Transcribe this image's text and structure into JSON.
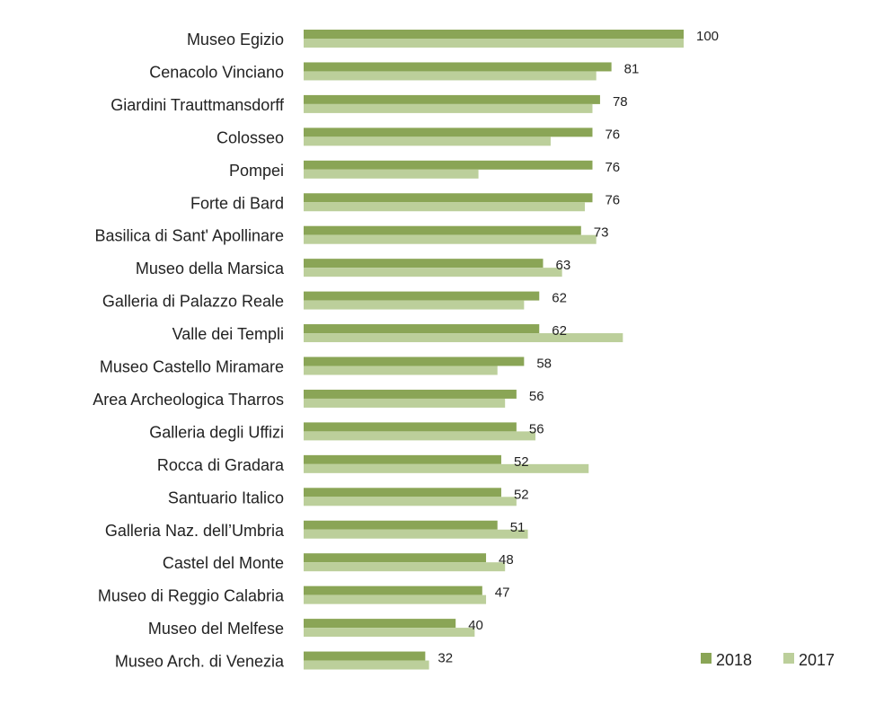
{
  "chart_data": {
    "type": "bar",
    "orientation": "horizontal",
    "title": "",
    "xlabel": "",
    "ylabel": "",
    "xlim": [
      0,
      100
    ],
    "grid": false,
    "legend_position": "bottom-right",
    "categories": [
      "Museo Egizio",
      "Cenacolo Vinciano",
      "Giardini Trauttmansdorff",
      "Colosseo",
      "Pompei",
      "Forte di Bard",
      "Basilica di Sant' Apollinare",
      "Museo della Marsica",
      "Galleria di Palazzo Reale",
      "Valle dei Templi",
      "Museo Castello Miramare",
      "Area Archeologica Tharros",
      "Galleria degli Uffizi",
      "Rocca di Gradara",
      "Santuario Italico",
      "Galleria Naz. dell’Umbria",
      "Castel del Monte",
      "Museo di Reggio Calabria",
      "Museo del Melfese",
      "Museo Arch. di Venezia"
    ],
    "series": [
      {
        "name": "2018",
        "color": "#8aa556",
        "labeled": true,
        "values": [
          100,
          81,
          78,
          76,
          76,
          76,
          73,
          63,
          62,
          62,
          58,
          56,
          56,
          52,
          52,
          51,
          48,
          47,
          40,
          32
        ]
      },
      {
        "name": "2017",
        "color": "#bccf9b",
        "labeled": false,
        "values": [
          100,
          77,
          76,
          65,
          46,
          74,
          77,
          68,
          58,
          84,
          51,
          53,
          61,
          75,
          56,
          59,
          53,
          48,
          45,
          33
        ]
      }
    ]
  }
}
